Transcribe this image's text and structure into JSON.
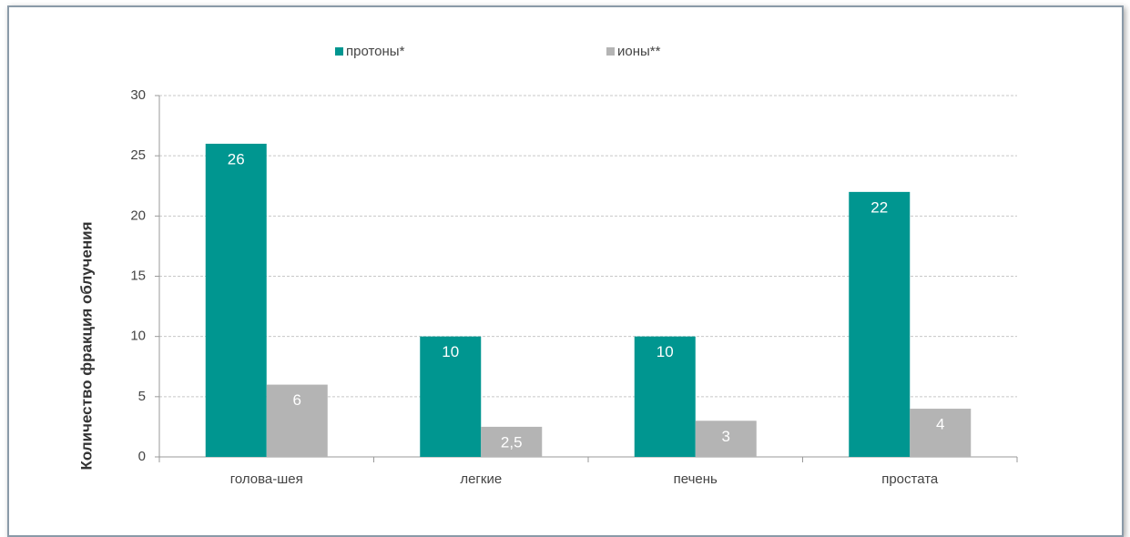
{
  "chart_data": {
    "type": "bar",
    "y_label": "Количество фракция облучения",
    "categories": [
      "голова-шея",
      "легкие",
      "печень",
      "простата"
    ],
    "series": [
      {
        "name": "протоны*",
        "color": "#009690",
        "values": [
          26,
          10,
          10,
          22
        ]
      },
      {
        "name": "ионы**",
        "color": "#b4b4b4",
        "values": [
          6,
          2.5,
          3,
          4
        ],
        "value_labels": [
          "6",
          "2,5",
          "3",
          "4"
        ]
      }
    ],
    "ylim": [
      0,
      30
    ],
    "yticks": [
      0,
      5,
      10,
      15,
      20,
      25,
      30
    ],
    "grid": true
  }
}
